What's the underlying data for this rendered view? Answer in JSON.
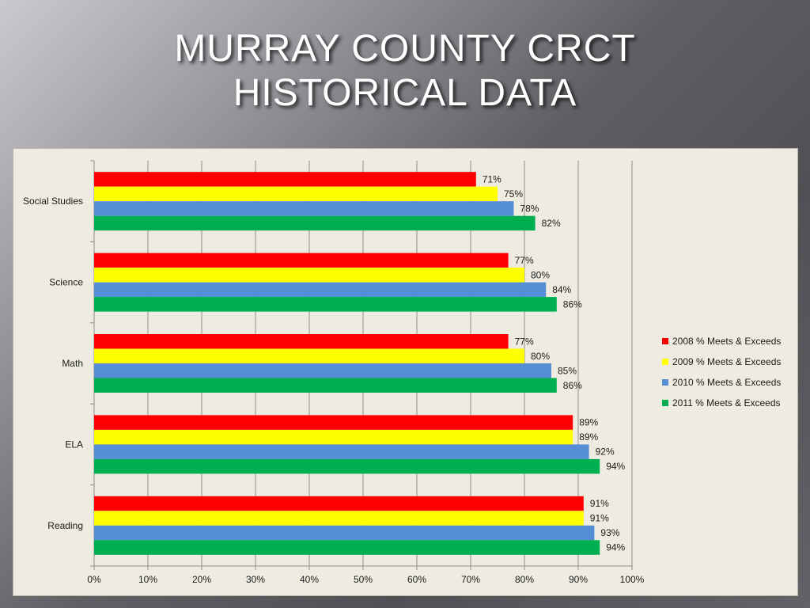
{
  "slide": {
    "title_line1": "MURRAY COUNTY  CRCT",
    "title_line2": "HISTORICAL DATA"
  },
  "chart_data": {
    "type": "bar",
    "orientation": "horizontal",
    "categories": [
      "Reading",
      "ELA",
      "Math",
      "Science",
      "Social Studies"
    ],
    "series": [
      {
        "name": "2008 % Meets & Exceeds",
        "color": "#ff0000",
        "values": [
          91,
          89,
          77,
          77,
          71
        ],
        "labels": [
          "91%",
          "89%",
          "77%",
          "77%",
          "71%"
        ]
      },
      {
        "name": "2009 % Meets & Exceeds",
        "color": "#ffff00",
        "values": [
          91,
          89,
          80,
          80,
          75
        ],
        "labels": [
          "91%",
          "89%",
          "80%",
          "80%",
          "75%"
        ]
      },
      {
        "name": "2010 % Meets & Exceeds",
        "color": "#558ed5",
        "values": [
          93,
          92,
          85,
          84,
          78
        ],
        "labels": [
          "93%",
          "92%",
          "85%",
          "84%",
          "78%"
        ]
      },
      {
        "name": "2011 % Meets & Exceeds",
        "color": "#00b050",
        "values": [
          94,
          94,
          86,
          86,
          82
        ],
        "labels": [
          "94%",
          "94%",
          "86%",
          "86%",
          "82%"
        ]
      }
    ],
    "xlim": [
      0,
      100
    ],
    "xticks": [
      "0%",
      "10%",
      "20%",
      "30%",
      "40%",
      "50%",
      "60%",
      "70%",
      "80%",
      "90%",
      "100%"
    ],
    "grid": true,
    "legend_position": "right",
    "xlabel": "",
    "ylabel": ""
  }
}
